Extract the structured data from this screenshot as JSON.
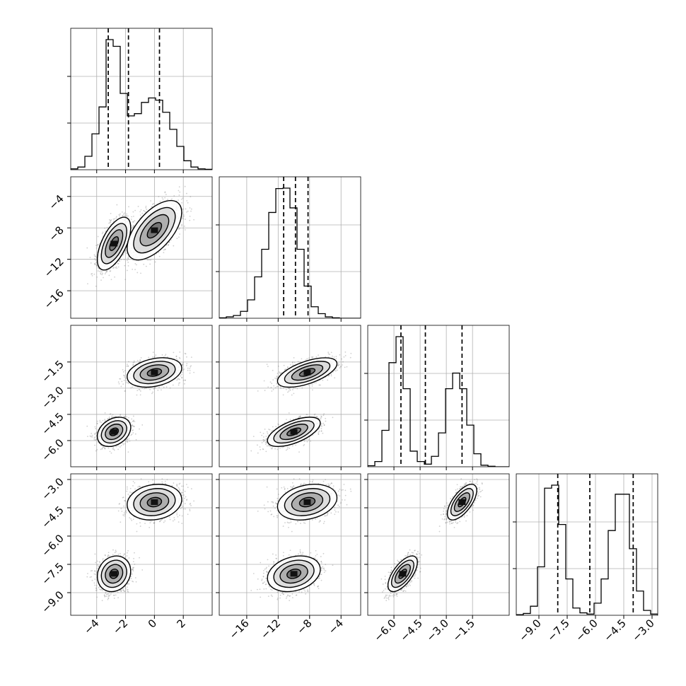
{
  "chart_data": {
    "type": "scatter",
    "grid": true,
    "axes_ranges": [
      [
        -5.8,
        4.0
      ],
      [
        -19.5,
        -1.5
      ],
      [
        -7.5,
        0.6
      ],
      [
        -10.2,
        -2.7
      ]
    ],
    "axes_ticks": [
      [
        -4,
        -2,
        0,
        2
      ],
      [
        -16,
        -12,
        -8,
        -4
      ],
      [
        -6.0,
        -4.5,
        -3.0,
        -1.5
      ],
      [
        -9.0,
        -7.5,
        -6.0,
        -4.5,
        -3.0
      ]
    ],
    "tick_labels": [
      [
        "−4",
        "−2",
        "0",
        "2"
      ],
      [
        "−16",
        "−12",
        "−8",
        "−4"
      ],
      [
        "−6.0",
        "−4.5",
        "−3.0",
        "−1.5"
      ],
      [
        "−9.0",
        "−7.5",
        "−6.0",
        "−4.5",
        "−3.0"
      ]
    ],
    "quantiles": [
      [
        -3.2,
        -1.8,
        0.35
      ],
      [
        -11.3,
        -9.8,
        -8.2
      ],
      [
        -5.6,
        -4.2,
        -2.1
      ],
      [
        -8.0,
        -6.3,
        -4.0
      ]
    ],
    "histograms": [
      {
        "edges_min": -5.8,
        "edges_max": 4.0,
        "counts": [
          2,
          6,
          30,
          80,
          140,
          290,
          275,
          170,
          120,
          125,
          150,
          160,
          155,
          128,
          90,
          52,
          20,
          6,
          2,
          1
        ]
      },
      {
        "edges_min": -19.5,
        "edges_max": -1.5,
        "counts": [
          1,
          3,
          6,
          15,
          40,
          90,
          150,
          230,
          282,
          283,
          240,
          150,
          70,
          25,
          10,
          3,
          1,
          0,
          0,
          0
        ]
      },
      {
        "edges_min": -7.5,
        "edges_max": 0.6,
        "counts": [
          2,
          10,
          70,
          200,
          250,
          150,
          30,
          10,
          5,
          20,
          65,
          150,
          180,
          150,
          80,
          25,
          3,
          1,
          0,
          0
        ]
      },
      {
        "edges_min": -10.2,
        "edges_max": -2.7,
        "counts": [
          1,
          3,
          15,
          80,
          210,
          215,
          150,
          60,
          12,
          4,
          2,
          20,
          60,
          140,
          200,
          200,
          110,
          40,
          8,
          2
        ]
      }
    ],
    "modes": [
      {
        "p": [
          -2.8,
          -10.0,
          -5.5,
          -8.0
        ],
        "s": [
          0.55,
          1.6,
          0.4,
          0.45
        ]
      },
      {
        "p": [
          0.0,
          -8.3,
          -2.1,
          -4.2
        ],
        "s": [
          0.9,
          1.8,
          0.4,
          0.45
        ]
      }
    ],
    "correlations": [
      [
        1.0,
        0.6,
        0.3,
        0.15
      ],
      [
        0.6,
        1.0,
        0.6,
        0.25
      ],
      [
        0.3,
        0.6,
        1.0,
        0.65
      ],
      [
        0.15,
        0.25,
        0.65,
        1.0
      ]
    ]
  }
}
